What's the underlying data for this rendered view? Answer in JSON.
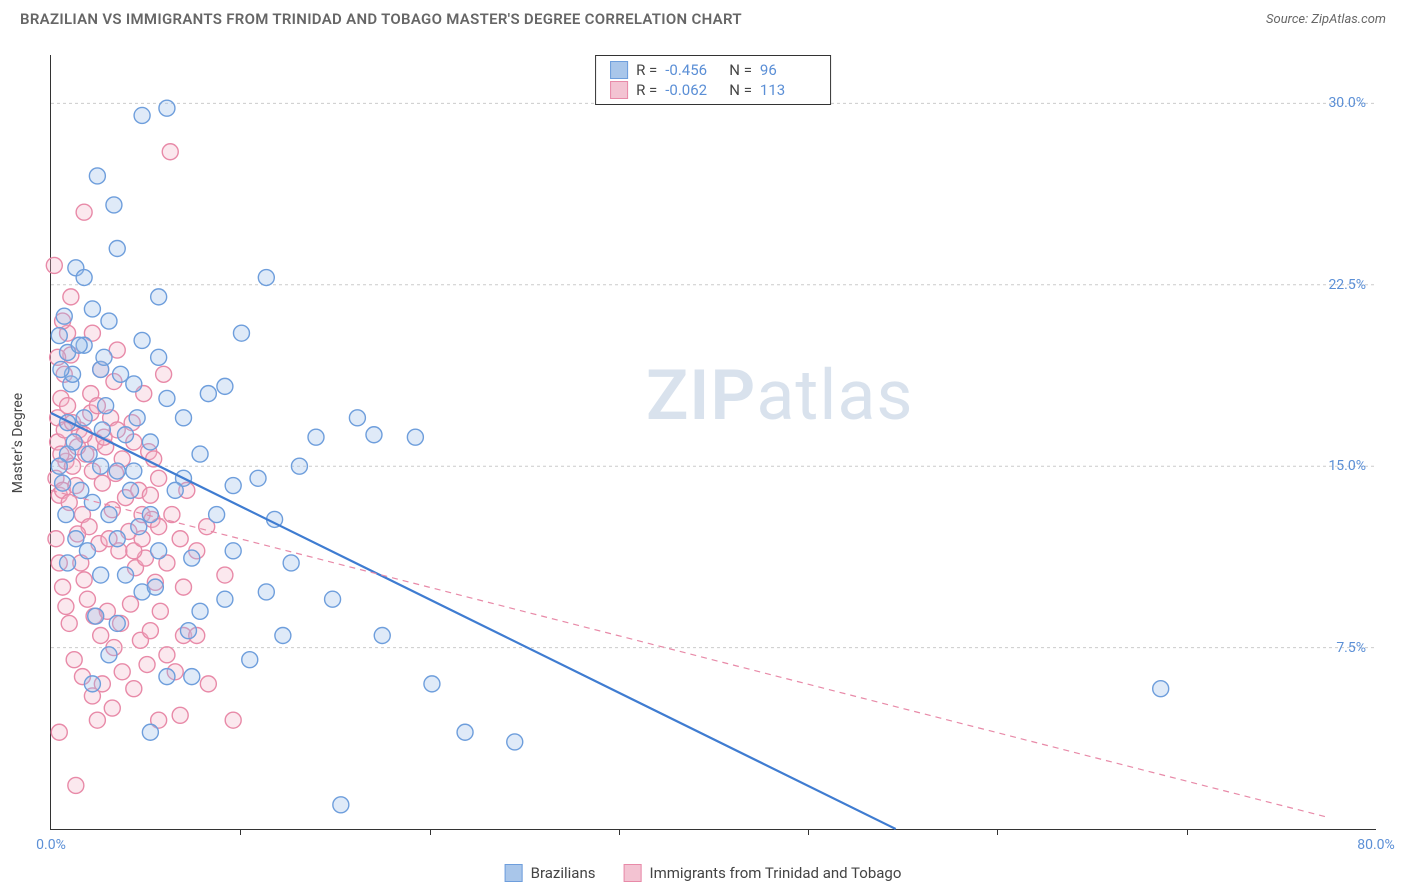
{
  "title": "BRAZILIAN VS IMMIGRANTS FROM TRINIDAD AND TOBAGO MASTER'S DEGREE CORRELATION CHART",
  "source": "Source: ZipAtlas.com",
  "watermark_a": "ZIP",
  "watermark_b": "atlas",
  "y_axis_label": "Master's Degree",
  "xlim": [
    0,
    80
  ],
  "ylim": [
    0,
    32
  ],
  "x_ticks": [
    0,
    80
  ],
  "x_tick_labels": [
    "0.0%",
    "80.0%"
  ],
  "x_minor_ticks": [
    11.4,
    22.9,
    34.3,
    45.7,
    57.1,
    68.6
  ],
  "y_ticks": [
    7.5,
    15.0,
    22.5,
    30.0
  ],
  "y_tick_labels": [
    "7.5%",
    "15.0%",
    "22.5%",
    "30.0%"
  ],
  "background_color": "#ffffff",
  "grid_color": "#cccccc",
  "axis_color": "#333333",
  "tick_label_color": "#5b8fd6",
  "marker_radius": 8,
  "marker_stroke_width": 1.4,
  "marker_fill_opacity": 0.32,
  "series": [
    {
      "name": "Brazilians",
      "color_stroke": "#6e9edc",
      "color_fill": "#9cbfe8",
      "swatch_fill": "#a9c6ea",
      "swatch_border": "#6e9edc",
      "R": "-0.456",
      "N": "96",
      "regression": {
        "x1": 0,
        "y1": 17.2,
        "x2": 51,
        "y2": 0,
        "stroke": "#3f7cd1",
        "width": 2.2,
        "dash": ""
      },
      "points": [
        [
          0.5,
          20.4
        ],
        [
          0.8,
          21.2
        ],
        [
          1.0,
          19.7
        ],
        [
          1.5,
          23.2
        ],
        [
          1.2,
          18.4
        ],
        [
          2.0,
          20.0
        ],
        [
          2.5,
          21.5
        ],
        [
          2.0,
          17.0
        ],
        [
          1.0,
          15.5
        ],
        [
          1.8,
          14.0
        ],
        [
          3.0,
          19.0
        ],
        [
          3.5,
          21.0
        ],
        [
          4.0,
          24.0
        ],
        [
          5.5,
          29.5
        ],
        [
          7.0,
          29.8
        ],
        [
          6.5,
          22.0
        ],
        [
          5.0,
          18.4
        ],
        [
          4.5,
          16.3
        ],
        [
          3.0,
          15.0
        ],
        [
          2.5,
          13.5
        ],
        [
          1.5,
          12.0
        ],
        [
          1.0,
          16.8
        ],
        [
          0.7,
          14.3
        ],
        [
          0.9,
          13.0
        ],
        [
          2.2,
          11.5
        ],
        [
          3.0,
          10.5
        ],
        [
          4.0,
          12.0
        ],
        [
          5.0,
          14.8
        ],
        [
          6.0,
          16.0
        ],
        [
          7.0,
          17.8
        ],
        [
          8.0,
          14.5
        ],
        [
          9.5,
          18.0
        ],
        [
          10.5,
          18.3
        ],
        [
          11.5,
          20.5
        ],
        [
          13.0,
          22.8
        ],
        [
          3.8,
          25.8
        ],
        [
          2.8,
          27.0
        ],
        [
          3.2,
          19.5
        ],
        [
          5.5,
          20.2
        ],
        [
          7.5,
          14.0
        ],
        [
          8.5,
          11.2
        ],
        [
          10.0,
          13.0
        ],
        [
          11.0,
          14.2
        ],
        [
          12.5,
          14.5
        ],
        [
          13.5,
          12.8
        ],
        [
          14.5,
          11.0
        ],
        [
          16.0,
          16.2
        ],
        [
          17.0,
          9.5
        ],
        [
          18.5,
          17.0
        ],
        [
          19.5,
          16.3
        ],
        [
          22.0,
          16.2
        ],
        [
          7.0,
          6.3
        ],
        [
          8.5,
          6.3
        ],
        [
          10.5,
          9.5
        ],
        [
          6.0,
          4.0
        ],
        [
          4.0,
          8.5
        ],
        [
          5.5,
          9.8
        ],
        [
          6.5,
          11.5
        ],
        [
          9.0,
          9.0
        ],
        [
          12.0,
          7.0
        ],
        [
          20.0,
          8.0
        ],
        [
          25.0,
          4.0
        ],
        [
          28.0,
          3.6
        ],
        [
          17.5,
          1.0
        ],
        [
          23.0,
          6.0
        ],
        [
          67.0,
          5.8
        ],
        [
          14.0,
          8.0
        ],
        [
          3.5,
          7.2
        ],
        [
          2.5,
          6.0
        ],
        [
          4.5,
          10.5
        ],
        [
          6.0,
          13.0
        ],
        [
          8.0,
          17.0
        ],
        [
          9.0,
          15.5
        ],
        [
          11.0,
          11.5
        ],
        [
          13.0,
          9.8
        ],
        [
          15.0,
          15.0
        ],
        [
          1.3,
          18.8
        ],
        [
          2.0,
          22.8
        ],
        [
          0.6,
          19.0
        ],
        [
          1.7,
          20.0
        ],
        [
          3.3,
          17.5
        ],
        [
          4.2,
          18.8
        ],
        [
          5.2,
          17.0
        ],
        [
          6.5,
          19.5
        ],
        [
          4.8,
          14.0
        ],
        [
          3.5,
          13.0
        ],
        [
          2.7,
          8.8
        ],
        [
          1.0,
          11.0
        ],
        [
          0.5,
          15.0
        ],
        [
          1.4,
          16.0
        ],
        [
          2.3,
          15.5
        ],
        [
          3.1,
          16.5
        ],
        [
          4.0,
          14.8
        ],
        [
          5.3,
          12.5
        ],
        [
          6.3,
          10.0
        ],
        [
          8.3,
          8.2
        ]
      ]
    },
    {
      "name": "Immigrants from Trinidad and Tobago",
      "color_stroke": "#e88aa8",
      "color_fill": "#f3b8cb",
      "swatch_fill": "#f3c3d2",
      "swatch_border": "#e88aa8",
      "R": "-0.062",
      "N": "113",
      "regression": {
        "x1": 0,
        "y1": 14.0,
        "x2": 77,
        "y2": 0.5,
        "stroke": "#e88aa8",
        "width": 1.2,
        "dash": "6,5"
      },
      "points": [
        [
          0.3,
          14.5
        ],
        [
          0.5,
          13.8
        ],
        [
          0.7,
          14.0
        ],
        [
          0.9,
          15.2
        ],
        [
          1.1,
          13.5
        ],
        [
          1.3,
          15.0
        ],
        [
          1.5,
          14.2
        ],
        [
          1.7,
          16.5
        ],
        [
          1.9,
          13.0
        ],
        [
          2.1,
          15.5
        ],
        [
          2.3,
          12.5
        ],
        [
          2.5,
          14.8
        ],
        [
          2.7,
          16.0
        ],
        [
          2.9,
          11.8
        ],
        [
          3.1,
          14.3
        ],
        [
          3.3,
          15.8
        ],
        [
          3.5,
          12.0
        ],
        [
          3.7,
          13.2
        ],
        [
          3.9,
          14.7
        ],
        [
          4.1,
          11.5
        ],
        [
          4.3,
          15.3
        ],
        [
          4.5,
          13.7
        ],
        [
          4.7,
          12.3
        ],
        [
          4.9,
          16.8
        ],
        [
          5.1,
          10.8
        ],
        [
          5.3,
          14.0
        ],
        [
          5.5,
          13.0
        ],
        [
          5.7,
          11.2
        ],
        [
          5.9,
          15.6
        ],
        [
          6.1,
          12.8
        ],
        [
          6.3,
          10.2
        ],
        [
          6.5,
          14.5
        ],
        [
          0.4,
          17.0
        ],
        [
          0.6,
          17.8
        ],
        [
          0.8,
          18.8
        ],
        [
          1.2,
          19.6
        ],
        [
          2.4,
          18.0
        ],
        [
          3.0,
          19.0
        ],
        [
          4.0,
          19.8
        ],
        [
          1.0,
          20.5
        ],
        [
          0.2,
          23.3
        ],
        [
          3.8,
          18.5
        ],
        [
          1.6,
          12.2
        ],
        [
          1.8,
          11.0
        ],
        [
          2.0,
          10.3
        ],
        [
          2.2,
          9.5
        ],
        [
          2.6,
          8.8
        ],
        [
          3.0,
          8.0
        ],
        [
          3.4,
          9.0
        ],
        [
          3.8,
          7.5
        ],
        [
          4.2,
          8.5
        ],
        [
          4.8,
          9.3
        ],
        [
          5.4,
          7.8
        ],
        [
          6.0,
          8.2
        ],
        [
          6.6,
          9.0
        ],
        [
          7.0,
          7.2
        ],
        [
          7.5,
          6.5
        ],
        [
          8.0,
          8.0
        ],
        [
          1.4,
          7.0
        ],
        [
          1.9,
          6.3
        ],
        [
          2.5,
          5.5
        ],
        [
          3.1,
          6.0
        ],
        [
          3.7,
          5.0
        ],
        [
          4.3,
          6.5
        ],
        [
          5.0,
          5.8
        ],
        [
          5.8,
          6.8
        ],
        [
          6.5,
          4.5
        ],
        [
          0.5,
          4.0
        ],
        [
          1.5,
          1.8
        ],
        [
          2.8,
          4.5
        ],
        [
          7.8,
          4.7
        ],
        [
          8.8,
          8.0
        ],
        [
          9.5,
          6.0
        ],
        [
          10.5,
          10.5
        ],
        [
          11.0,
          4.5
        ],
        [
          6.8,
          18.8
        ],
        [
          8.0,
          10.0
        ],
        [
          0.3,
          12.0
        ],
        [
          0.5,
          11.0
        ],
        [
          0.7,
          10.0
        ],
        [
          0.9,
          9.2
        ],
        [
          1.1,
          8.5
        ],
        [
          0.4,
          16.0
        ],
        [
          0.6,
          15.5
        ],
        [
          0.8,
          16.5
        ],
        [
          1.0,
          17.5
        ],
        [
          1.3,
          16.8
        ],
        [
          1.6,
          15.8
        ],
        [
          2.0,
          16.3
        ],
        [
          2.4,
          17.2
        ],
        [
          2.8,
          17.5
        ],
        [
          3.2,
          16.2
        ],
        [
          3.6,
          17.0
        ],
        [
          4.0,
          16.5
        ],
        [
          5.0,
          16.0
        ],
        [
          5.6,
          18.0
        ],
        [
          6.2,
          15.3
        ],
        [
          1.2,
          22.0
        ],
        [
          0.7,
          21.0
        ],
        [
          2.5,
          20.5
        ],
        [
          7.2,
          28.0
        ],
        [
          2.0,
          25.5
        ],
        [
          0.4,
          19.5
        ],
        [
          5.0,
          11.5
        ],
        [
          5.5,
          12.0
        ],
        [
          6.0,
          13.8
        ],
        [
          6.5,
          12.5
        ],
        [
          7.0,
          11.0
        ],
        [
          7.3,
          13.0
        ],
        [
          7.8,
          12.0
        ],
        [
          8.2,
          14.0
        ],
        [
          8.8,
          11.5
        ],
        [
          9.4,
          12.5
        ]
      ]
    }
  ],
  "stats_labels": {
    "R": "R =",
    "N": "N ="
  },
  "bottom_legend": {
    "items": [
      {
        "label": "Brazilians"
      },
      {
        "label": "Immigrants from Trinidad and Tobago"
      }
    ]
  }
}
